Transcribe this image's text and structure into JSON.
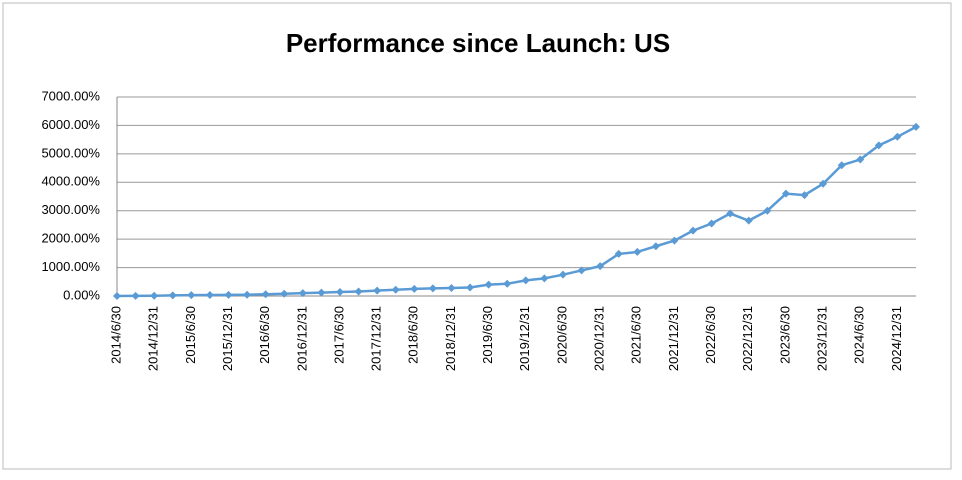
{
  "chart_data": {
    "type": "line",
    "title": "Performance since Launch: US",
    "categories": [
      "2014/6/30",
      null,
      "2014/12/31",
      null,
      "2015/6/30",
      null,
      "2015/12/31",
      null,
      "2016/6/30",
      null,
      "2016/12/31",
      null,
      "2017/6/30",
      null,
      "2017/12/31",
      null,
      "2018/6/30",
      null,
      "2018/12/31",
      null,
      "2019/6/30",
      null,
      "2019/12/31",
      null,
      "2020/6/30",
      null,
      "2020/12/31",
      null,
      "2021/6/30",
      null,
      "2021/12/31",
      null,
      "2022/6/30",
      null,
      "2022/12/31",
      null,
      "2023/6/30",
      null,
      "2023/12/31",
      null,
      "2024/6/30",
      null,
      "2024/12/31",
      null
    ],
    "series": [
      {
        "name": "US",
        "color": "#5b9bd5",
        "values": [
          0,
          5,
          10,
          20,
          30,
          35,
          40,
          45,
          60,
          80,
          100,
          120,
          140,
          160,
          190,
          220,
          250,
          270,
          280,
          300,
          400,
          430,
          550,
          620,
          750,
          900,
          1050,
          1480,
          1550,
          1750,
          1950,
          2300,
          2550,
          2900,
          2650,
          3000,
          3600,
          3550,
          3950,
          4600,
          4800,
          5300,
          5600,
          5950
        ]
      }
    ],
    "ylim": [
      0,
      7000
    ],
    "yticks": [
      {
        "value": 0,
        "label": "0.00%"
      },
      {
        "value": 1000,
        "label": "1000.00%"
      },
      {
        "value": 2000,
        "label": "2000.00%"
      },
      {
        "value": 3000,
        "label": "3000.00%"
      },
      {
        "value": 4000,
        "label": "4000.00%"
      },
      {
        "value": 5000,
        "label": "5000.00%"
      },
      {
        "value": 6000,
        "label": "6000.00%"
      },
      {
        "value": 7000,
        "label": "7000.00%"
      }
    ],
    "grid": true
  }
}
